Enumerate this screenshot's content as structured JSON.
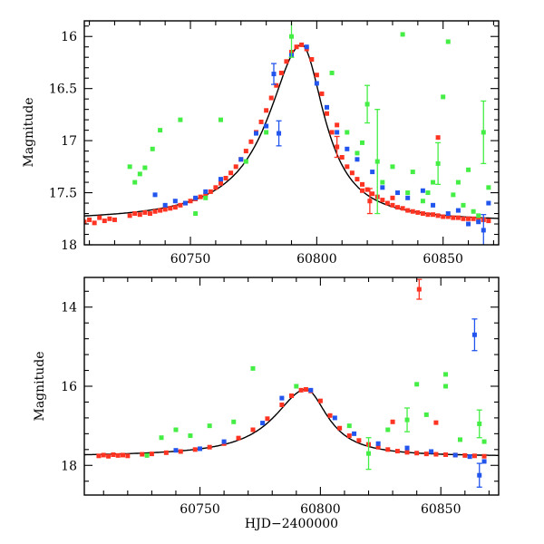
{
  "chart_data": [
    {
      "type": "scatter",
      "title": "",
      "xlabel": "",
      "ylabel": "Magnitude",
      "xlim": [
        60708,
        60872
      ],
      "ylim": [
        18.0,
        15.85
      ],
      "y_inverted": true,
      "xticks": [
        60750,
        60800,
        60850
      ],
      "xtick_labels": [
        "60750",
        "60800",
        "60850"
      ],
      "yticks": [
        16,
        16.5,
        17,
        17.5,
        18
      ],
      "ytick_labels": [
        "16",
        "16.5",
        "17",
        "17.5",
        "18"
      ],
      "grid": false,
      "series": [
        {
          "color": "#ff3322",
          "points": [
            [
              60708,
              17.78
            ],
            [
              60710,
              17.76
            ],
            [
              60712,
              17.79
            ],
            [
              60714,
              17.74
            ],
            [
              60716,
              17.77
            ],
            [
              60718,
              17.75
            ],
            [
              60720,
              17.76
            ],
            [
              60726,
              17.72
            ],
            [
              60728,
              17.7
            ],
            [
              60730,
              17.71
            ],
            [
              60732,
              17.69
            ],
            [
              60734,
              17.7
            ],
            [
              60736,
              17.68
            ],
            [
              60738,
              17.67
            ],
            [
              60740,
              17.66
            ],
            [
              60742,
              17.65
            ],
            [
              60744,
              17.64
            ],
            [
              60746,
              17.62
            ],
            [
              60748,
              17.6
            ],
            [
              60750,
              17.58
            ],
            [
              60752,
              17.56
            ],
            [
              60754,
              17.54
            ],
            [
              60756,
              17.52
            ],
            [
              60758,
              17.49
            ],
            [
              60760,
              17.45
            ],
            [
              60762,
              17.41
            ],
            [
              60764,
              17.36
            ],
            [
              60766,
              17.31
            ],
            [
              60768,
              17.25
            ],
            [
              60770,
              17.18
            ],
            [
              60772,
              17.1
            ],
            [
              60774,
              17.01
            ],
            [
              60776,
              16.92
            ],
            [
              60778,
              16.82
            ],
            [
              60780,
              16.71
            ],
            [
              60782,
              16.59
            ],
            [
              60784,
              16.47
            ],
            [
              60786,
              16.35
            ],
            [
              60788,
              16.24
            ],
            [
              60790,
              16.15
            ],
            [
              60792,
              16.1
            ],
            [
              60794,
              16.08
            ],
            [
              60796,
              16.12
            ],
            [
              60798,
              16.22
            ],
            [
              60800,
              16.37
            ],
            [
              60802,
              16.55
            ],
            [
              60804,
              16.74
            ],
            [
              60806,
              16.92
            ],
            [
              60808,
              17.06
            ],
            [
              60810,
              17.16
            ],
            [
              60812,
              17.25
            ],
            [
              60814,
              17.31
            ],
            [
              60816,
              17.37
            ],
            [
              60818,
              17.42
            ],
            [
              60820,
              17.47
            ],
            [
              60822,
              17.51
            ],
            [
              60824,
              17.54
            ],
            [
              60826,
              17.57
            ],
            [
              60828,
              17.6
            ],
            [
              60830,
              17.62
            ],
            [
              60832,
              17.64
            ],
            [
              60834,
              17.65
            ],
            [
              60836,
              17.67
            ],
            [
              60838,
              17.68
            ],
            [
              60840,
              17.69
            ],
            [
              60842,
              17.7
            ],
            [
              60844,
              17.71
            ],
            [
              60846,
              17.71
            ],
            [
              60848,
              17.72
            ],
            [
              60850,
              17.73
            ],
            [
              60852,
              17.73
            ],
            [
              60854,
              17.74
            ],
            [
              60856,
              17.74
            ],
            [
              60858,
              17.75
            ],
            [
              60860,
              17.75
            ],
            [
              60862,
              17.75
            ],
            [
              60864,
              17.76
            ],
            [
              60866,
              17.76
            ],
            [
              60868,
              17.77
            ],
            [
              60808,
              16.85
            ],
            [
              60821,
              17.58
            ],
            [
              60848,
              16.97
            ],
            [
              60818,
              17.48
            ],
            [
              60830,
              17.55
            ]
          ],
          "error": [
            [
              60821,
              0.12
            ],
            [
              60808,
              0.1
            ]
          ]
        },
        {
          "color": "#2255ee",
          "points": [
            [
              60736,
              17.52
            ],
            [
              60740,
              17.62
            ],
            [
              60744,
              17.58
            ],
            [
              60748,
              17.6
            ],
            [
              60752,
              17.55
            ],
            [
              60756,
              17.49
            ],
            [
              60762,
              17.37
            ],
            [
              60770,
              17.18
            ],
            [
              60776,
              16.93
            ],
            [
              60780,
              16.86
            ],
            [
              60783,
              16.36
            ],
            [
              60785,
              16.93
            ],
            [
              60790,
              16.18
            ],
            [
              60796,
              16.1
            ],
            [
              60800,
              16.45
            ],
            [
              60804,
              16.68
            ],
            [
              60808,
              16.92
            ],
            [
              60812,
              17.08
            ],
            [
              60816,
              17.18
            ],
            [
              60822,
              17.3
            ],
            [
              60826,
              17.45
            ],
            [
              60832,
              17.5
            ],
            [
              60836,
              17.55
            ],
            [
              60842,
              17.48
            ],
            [
              60846,
              17.62
            ],
            [
              60852,
              17.7
            ],
            [
              60856,
              17.67
            ],
            [
              60860,
              17.8
            ],
            [
              60864,
              17.78
            ],
            [
              60866,
              17.86
            ],
            [
              60868,
              17.6
            ]
          ],
          "error": [
            [
              60783,
              0.1
            ],
            [
              60785,
              0.12
            ],
            [
              60866,
              0.15
            ]
          ]
        },
        {
          "color": "#44ee44",
          "points": [
            [
              60726,
              17.25
            ],
            [
              60728,
              17.4
            ],
            [
              60730,
              17.32
            ],
            [
              60732,
              17.26
            ],
            [
              60735,
              17.08
            ],
            [
              60738,
              16.9
            ],
            [
              60746,
              16.8
            ],
            [
              60752,
              17.7
            ],
            [
              60756,
              17.55
            ],
            [
              60762,
              16.8
            ],
            [
              60772,
              17.2
            ],
            [
              60780,
              16.92
            ],
            [
              60790,
              16.0
            ],
            [
              60806,
              16.35
            ],
            [
              60812,
              16.92
            ],
            [
              60816,
              17.12
            ],
            [
              60818,
              17.02
            ],
            [
              60820,
              16.65
            ],
            [
              60824,
              17.2
            ],
            [
              60826,
              17.4
            ],
            [
              60830,
              17.25
            ],
            [
              60834,
              15.98
            ],
            [
              60836,
              17.5
            ],
            [
              60838,
              17.3
            ],
            [
              60842,
              17.58
            ],
            [
              60844,
              17.5
            ],
            [
              60846,
              17.4
            ],
            [
              60848,
              17.22
            ],
            [
              60850,
              16.58
            ],
            [
              60852,
              16.05
            ],
            [
              60854,
              17.52
            ],
            [
              60856,
              17.4
            ],
            [
              60858,
              17.62
            ],
            [
              60860,
              17.28
            ],
            [
              60862,
              17.68
            ],
            [
              60864,
              17.72
            ],
            [
              60866,
              16.92
            ],
            [
              60868,
              17.45
            ]
          ],
          "error": [
            [
              60790,
              0.2
            ],
            [
              60820,
              0.18
            ],
            [
              60824,
              0.5
            ],
            [
              60848,
              0.2
            ],
            [
              60866,
              0.3
            ]
          ]
        }
      ],
      "model_curve": true
    },
    {
      "type": "scatter",
      "title": "",
      "xlabel": "HJD−2400000",
      "ylabel": "Magnitude",
      "xlim": [
        60702,
        60874
      ],
      "ylim": [
        18.75,
        13.25
      ],
      "y_inverted": true,
      "xticks": [
        60750,
        60800,
        60850
      ],
      "xtick_labels": [
        "60750",
        "60800",
        "60850"
      ],
      "yticks": [
        14,
        16,
        18
      ],
      "ytick_labels": [
        "14",
        "16",
        "18"
      ],
      "grid": false,
      "series": [
        {
          "color": "#ff3322",
          "points": [
            [
              60708,
              17.76
            ],
            [
              60710,
              17.74
            ],
            [
              60712,
              17.77
            ],
            [
              60714,
              17.73
            ],
            [
              60716,
              17.75
            ],
            [
              60718,
              17.74
            ],
            [
              60720,
              17.76
            ],
            [
              60726,
              17.72
            ],
            [
              60730,
              17.71
            ],
            [
              60736,
              17.68
            ],
            [
              60742,
              17.65
            ],
            [
              60748,
              17.6
            ],
            [
              60754,
              17.54
            ],
            [
              60760,
              17.45
            ],
            [
              60766,
              17.31
            ],
            [
              60772,
              17.1
            ],
            [
              60778,
              16.82
            ],
            [
              60784,
              16.47
            ],
            [
              60788,
              16.24
            ],
            [
              60792,
              16.1
            ],
            [
              60794,
              16.08
            ],
            [
              60796,
              16.12
            ],
            [
              60800,
              16.37
            ],
            [
              60804,
              16.74
            ],
            [
              60808,
              17.06
            ],
            [
              60812,
              17.25
            ],
            [
              60816,
              17.37
            ],
            [
              60820,
              17.47
            ],
            [
              60824,
              17.54
            ],
            [
              60828,
              17.6
            ],
            [
              60832,
              17.64
            ],
            [
              60836,
              17.67
            ],
            [
              60840,
              17.69
            ],
            [
              60844,
              17.71
            ],
            [
              60848,
              17.72
            ],
            [
              60852,
              17.73
            ],
            [
              60856,
              17.74
            ],
            [
              60860,
              17.75
            ],
            [
              60864,
              17.76
            ],
            [
              60868,
              17.77
            ],
            [
              60841,
              13.55
            ],
            [
              60848,
              16.92
            ],
            [
              60830,
              16.9
            ]
          ],
          "error": [
            [
              60841,
              0.25
            ]
          ]
        },
        {
          "color": "#2255ee",
          "points": [
            [
              60740,
              17.62
            ],
            [
              60750,
              17.58
            ],
            [
              60760,
              17.4
            ],
            [
              60776,
              16.93
            ],
            [
              60784,
              16.3
            ],
            [
              60796,
              16.1
            ],
            [
              60806,
              16.8
            ],
            [
              60814,
              17.2
            ],
            [
              60824,
              17.45
            ],
            [
              60836,
              17.56
            ],
            [
              60846,
              17.65
            ],
            [
              60856,
              17.74
            ],
            [
              60862,
              17.78
            ],
            [
              60864,
              14.7
            ],
            [
              60866,
              18.25
            ],
            [
              60868,
              17.9
            ]
          ],
          "error": [
            [
              60864,
              0.4
            ],
            [
              60866,
              0.3
            ]
          ]
        },
        {
          "color": "#44ee44",
          "points": [
            [
              60728,
              17.75
            ],
            [
              60734,
              17.3
            ],
            [
              60740,
              17.1
            ],
            [
              60746,
              17.25
            ],
            [
              60754,
              17.0
            ],
            [
              60764,
              16.9
            ],
            [
              60772,
              15.55
            ],
            [
              60790,
              16.0
            ],
            [
              60812,
              17.0
            ],
            [
              60820,
              17.7
            ],
            [
              60828,
              17.1
            ],
            [
              60836,
              16.85
            ],
            [
              60840,
              15.95
            ],
            [
              60844,
              16.72
            ],
            [
              60852,
              16.0
            ],
            [
              60852,
              15.7
            ],
            [
              60858,
              17.35
            ],
            [
              60866,
              16.95
            ],
            [
              60868,
              17.4
            ]
          ],
          "error": [
            [
              60820,
              0.4
            ],
            [
              60866,
              0.35
            ],
            [
              60836,
              0.3
            ]
          ]
        }
      ],
      "model_curve": true
    }
  ]
}
